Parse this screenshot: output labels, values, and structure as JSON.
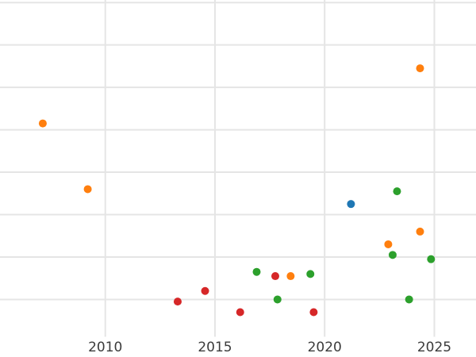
{
  "chart_data": {
    "type": "scatter",
    "title": "",
    "xlabel": "",
    "ylabel": "",
    "grid": true,
    "legend": "none",
    "x_axis": {
      "tick_labels": [
        "2010",
        "2015",
        "2020",
        "2025"
      ],
      "tick_values": [
        2010,
        2015,
        2020,
        2025
      ],
      "range": [
        2005.2,
        2026.9
      ]
    },
    "y_axis": {
      "tick_labels": [],
      "note": "y-axis tick labels are cropped out of view; values given in gridline units counted from the lowest gridline = 1",
      "gridline_values": [
        1,
        2,
        3,
        4,
        5,
        6,
        7,
        8
      ],
      "range": [
        0.12,
        8.06
      ]
    },
    "series": [
      {
        "name": "orange",
        "color": "#ff7f0e",
        "points": [
          {
            "x": 2007.15,
            "y": 5.15
          },
          {
            "x": 2009.2,
            "y": 3.6
          },
          {
            "x": 2018.45,
            "y": 1.55
          },
          {
            "x": 2022.9,
            "y": 2.3
          },
          {
            "x": 2024.35,
            "y": 2.6
          },
          {
            "x": 2024.35,
            "y": 6.45
          }
        ]
      },
      {
        "name": "red",
        "color": "#d62728",
        "points": [
          {
            "x": 2013.3,
            "y": 0.95
          },
          {
            "x": 2014.55,
            "y": 1.2
          },
          {
            "x": 2016.15,
            "y": 0.7
          },
          {
            "x": 2017.75,
            "y": 1.55
          },
          {
            "x": 2019.5,
            "y": 0.7
          }
        ]
      },
      {
        "name": "green",
        "color": "#2ca02c",
        "points": [
          {
            "x": 2016.9,
            "y": 1.65
          },
          {
            "x": 2017.85,
            "y": 1.0
          },
          {
            "x": 2019.35,
            "y": 1.6
          },
          {
            "x": 2023.1,
            "y": 2.05
          },
          {
            "x": 2023.3,
            "y": 3.55
          },
          {
            "x": 2023.85,
            "y": 1.0
          },
          {
            "x": 2024.85,
            "y": 1.95
          }
        ]
      },
      {
        "name": "blue",
        "color": "#1f77b4",
        "points": [
          {
            "x": 2021.2,
            "y": 3.25
          }
        ]
      }
    ],
    "style": {
      "background_color": "#ffffff",
      "gridline_color": "#e5e5e5",
      "tick_label_color": "#3b3b3b",
      "marker_radius_px": 5
    }
  }
}
